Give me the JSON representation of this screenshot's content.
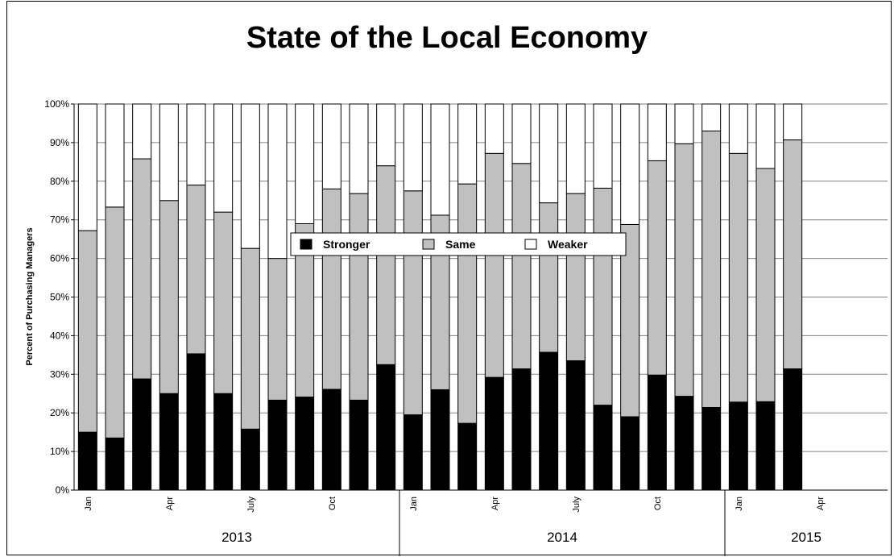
{
  "chart_data": {
    "type": "bar",
    "stacked": true,
    "percent": true,
    "title": "State of the Local Economy",
    "ylabel": "Percent of Purchasing Managers",
    "xlabel": "",
    "ylim": [
      0,
      100
    ],
    "yticks": [
      "0%",
      "10%",
      "20%",
      "30%",
      "40%",
      "50%",
      "60%",
      "70%",
      "80%",
      "90%",
      "100%"
    ],
    "grid": true,
    "legend_position": "center",
    "month_labels": [
      "Jan",
      "",
      "",
      "Apr",
      "",
      "",
      "July",
      "",
      "",
      "Oct",
      "",
      "",
      "Jan",
      "",
      "",
      "Apr",
      "",
      "",
      "July",
      "",
      "",
      "Oct",
      "",
      "",
      "Jan",
      "",
      "",
      "Apr",
      "",
      ""
    ],
    "years": [
      {
        "label": "2013",
        "start": 0,
        "count": 12
      },
      {
        "label": "2014",
        "start": 12,
        "count": 12
      },
      {
        "label": "2015",
        "start": 24,
        "count": 6
      }
    ],
    "slot_count": 30,
    "series": [
      {
        "name": "Stronger",
        "color": "#000000",
        "values": [
          15,
          13.5,
          28.8,
          25,
          35.3,
          25,
          15.8,
          23.3,
          24.1,
          26.1,
          23.3,
          32.5,
          19.5,
          26,
          17.3,
          29.2,
          31.4,
          35.7,
          33.5,
          22,
          19,
          29.8,
          24.3,
          21.4,
          22.8,
          22.9,
          31.4
        ]
      },
      {
        "name": "Same",
        "color": "#c0c0c0",
        "values": [
          52.2,
          59.8,
          57.0,
          50.0,
          43.7,
          47.0,
          46.8,
          36.7,
          44.9,
          51.9,
          53.5,
          51.5,
          58.0,
          45.2,
          62.0,
          58.0,
          53.2,
          38.7,
          43.3,
          56.2,
          49.8,
          55.5,
          65.4,
          71.6,
          64.4,
          60.4,
          59.3
        ]
      },
      {
        "name": "Weaker",
        "color": "#ffffff",
        "values": [
          32.8,
          26.7,
          14.2,
          25.0,
          21.0,
          28.0,
          37.4,
          40.0,
          31.0,
          22.0,
          23.2,
          16.0,
          22.5,
          28.8,
          20.7,
          12.8,
          15.4,
          25.6,
          23.2,
          21.8,
          31.2,
          14.7,
          10.3,
          7.0,
          12.8,
          16.7,
          9.3
        ]
      }
    ]
  }
}
